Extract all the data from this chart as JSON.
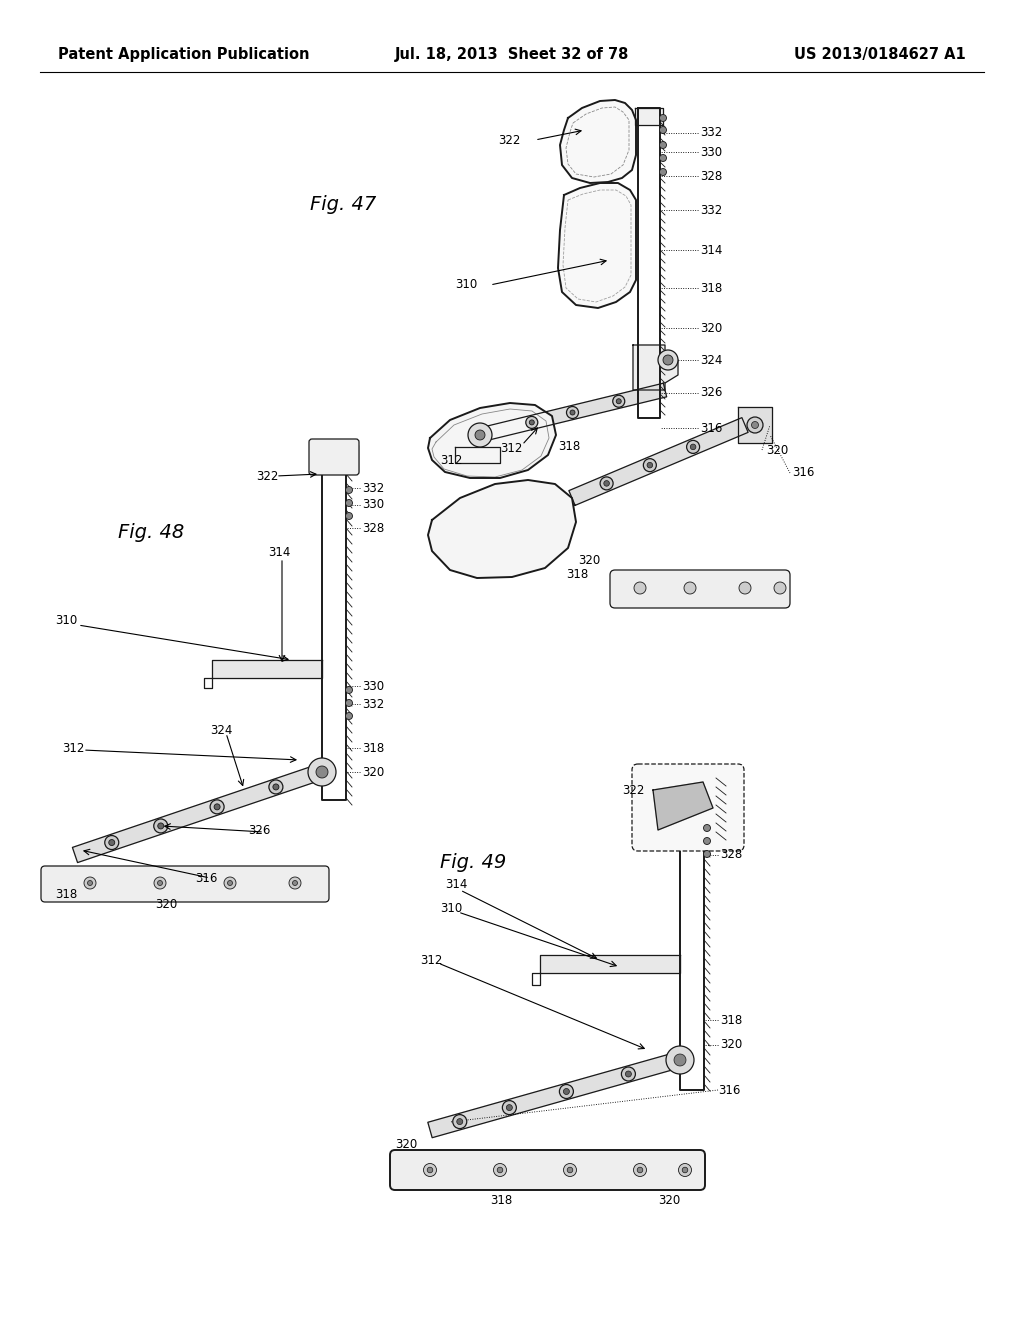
{
  "header_left": "Patent Application Publication",
  "header_mid": "Jul. 18, 2013  Sheet 32 of 78",
  "header_right": "US 2013/0184627 A1",
  "fig47_label": "Fig. 47",
  "fig48_label": "Fig. 48",
  "fig49_label": "Fig. 49",
  "background_color": "#ffffff",
  "line_color": "#1a1a1a",
  "font_size_header": 10.5,
  "font_size_ref": 8.5,
  "fig_label_fontsize": 14
}
